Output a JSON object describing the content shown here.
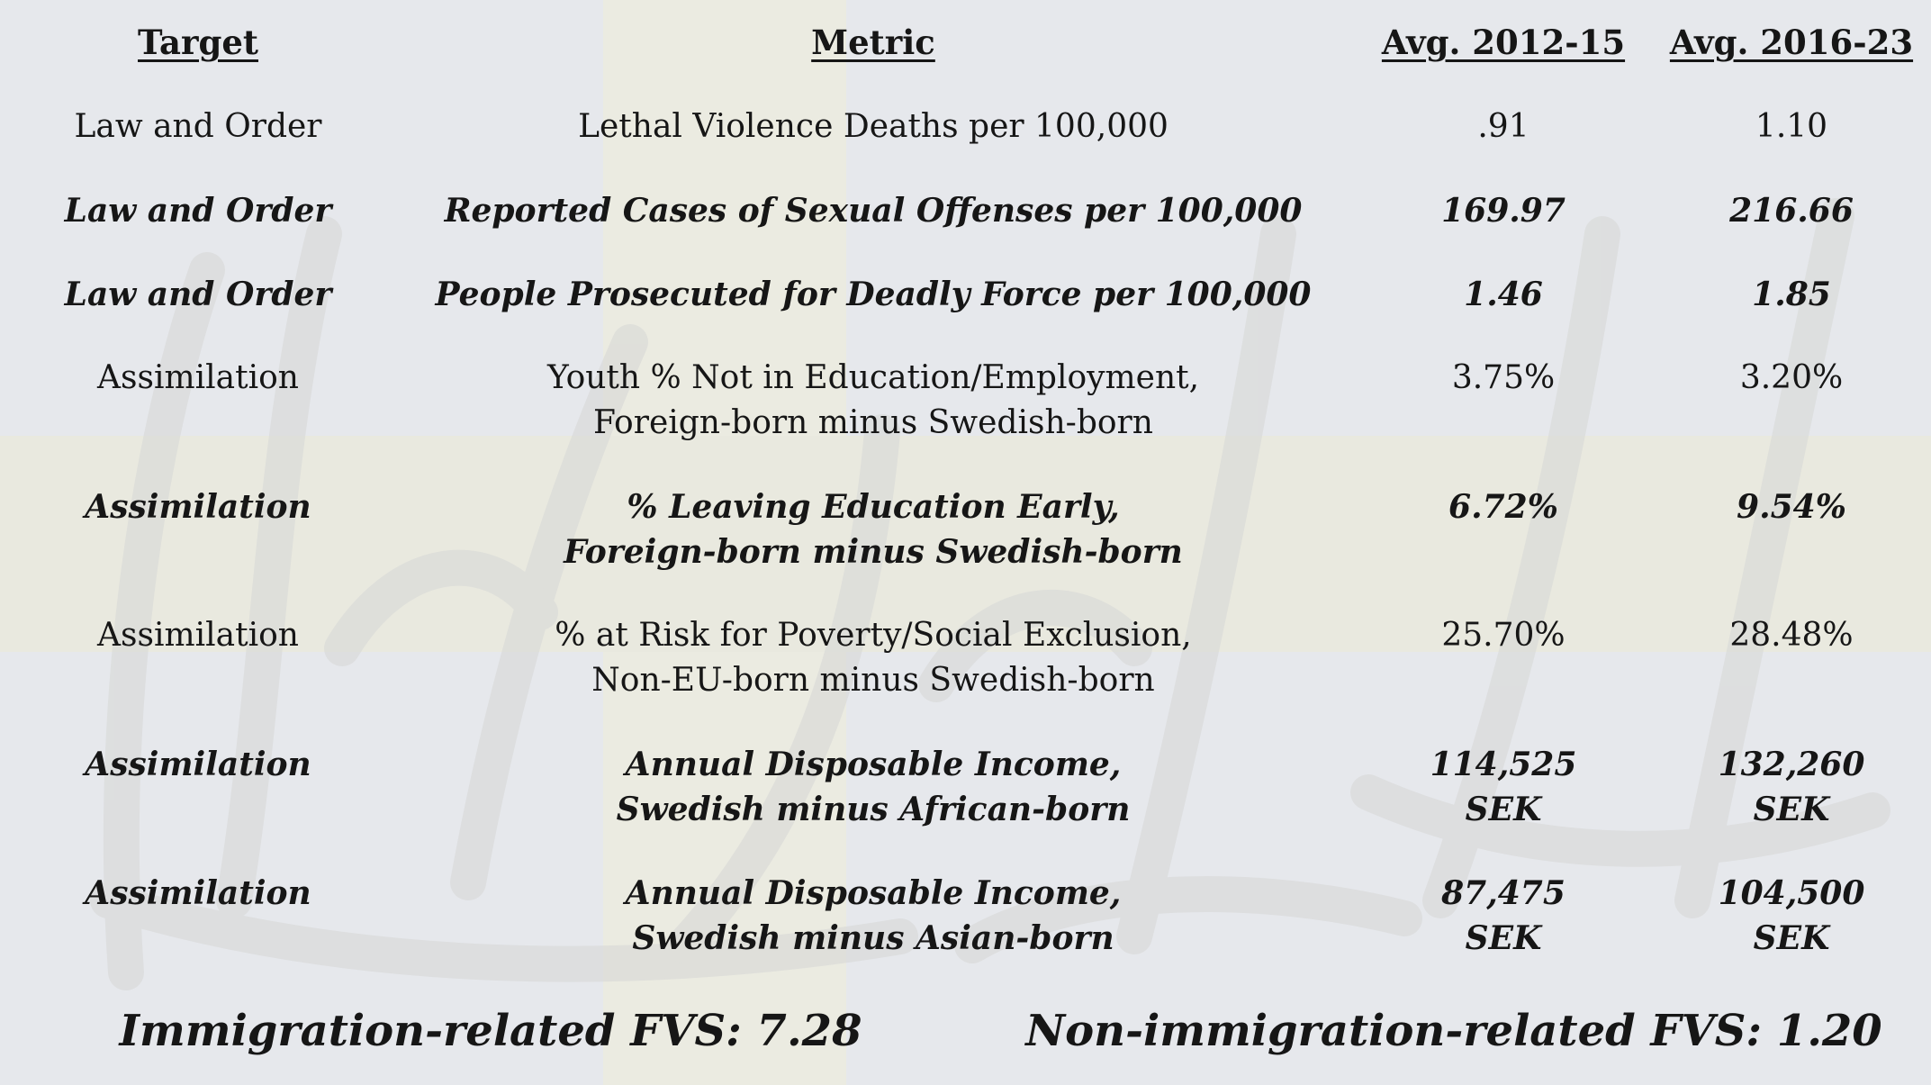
{
  "headers": {
    "target": "Target",
    "metric": "Metric",
    "avg1": "Avg. 2012-15",
    "avg2": "Avg. 2016-23"
  },
  "rows": [
    {
      "target": "Law and Order",
      "metric": [
        "Lethal Violence Deaths per 100,000"
      ],
      "avg1": [
        ".91"
      ],
      "avg2": [
        "1.10"
      ],
      "emphasis": false
    },
    {
      "target": "Law and Order",
      "metric": [
        "Reported Cases of Sexual Offenses per 100,000"
      ],
      "avg1": [
        "169.97"
      ],
      "avg2": [
        "216.66"
      ],
      "emphasis": true
    },
    {
      "target": "Law and Order",
      "metric": [
        "People Prosecuted for Deadly Force per 100,000"
      ],
      "avg1": [
        "1.46"
      ],
      "avg2": [
        "1.85"
      ],
      "emphasis": true
    },
    {
      "target": "Assimilation",
      "metric": [
        "Youth % Not in Education/Employment,",
        "Foreign-born minus Swedish-born"
      ],
      "avg1": [
        "3.75%"
      ],
      "avg2": [
        "3.20%"
      ],
      "emphasis": false
    },
    {
      "target": "Assimilation",
      "metric": [
        "% Leaving Education Early,",
        "Foreign-born minus Swedish-born"
      ],
      "avg1": [
        "6.72%"
      ],
      "avg2": [
        "9.54%"
      ],
      "emphasis": true
    },
    {
      "target": "Assimilation",
      "metric": [
        "% at Risk for Poverty/Social Exclusion,",
        "Non-EU-born minus Swedish-born"
      ],
      "avg1": [
        "25.70%"
      ],
      "avg2": [
        "28.48%"
      ],
      "emphasis": false
    },
    {
      "target": "Assimilation",
      "metric": [
        "Annual Disposable Income,",
        "Swedish minus African-born"
      ],
      "avg1": [
        "114,525",
        "SEK"
      ],
      "avg2": [
        "132,260",
        "SEK"
      ],
      "emphasis": true
    },
    {
      "target": "Assimilation",
      "metric": [
        "Annual Disposable Income,",
        "Swedish minus Asian-born"
      ],
      "avg1": [
        "87,475",
        "SEK"
      ],
      "avg2": [
        "104,500",
        "SEK"
      ],
      "emphasis": true
    }
  ],
  "footer": {
    "left": "Immigration-related FVS: 7.28",
    "right": "Non-immigration-related FVS: 1.20"
  },
  "colors": {
    "background": "#e6e8ec",
    "cross": "#ebebe1",
    "text": "#161616"
  }
}
